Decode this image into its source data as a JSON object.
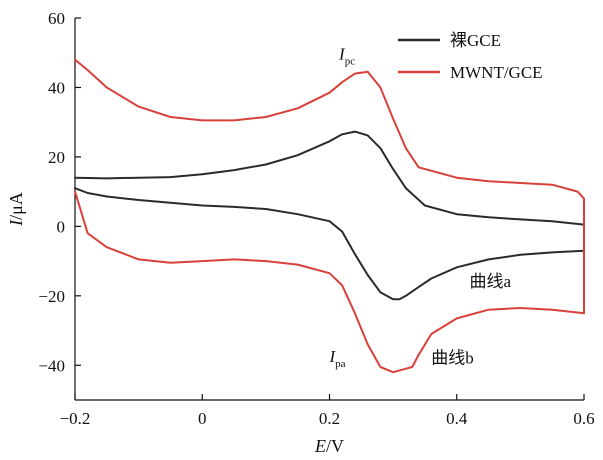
{
  "chart_data": {
    "type": "line",
    "title": "",
    "xlabel": "E/V",
    "ylabel": "I/μA",
    "xlim": [
      -0.2,
      0.6
    ],
    "ylim": [
      -50,
      60
    ],
    "xticks": [
      "−0.2",
      "0",
      "0.2",
      "0.4",
      "0.6"
    ],
    "yticks": [
      "−40",
      "−20",
      "0",
      "20",
      "40",
      "60"
    ],
    "xtick_values": [
      -0.2,
      0,
      0.2,
      0.4,
      0.6
    ],
    "ytick_values": [
      -40,
      -20,
      0,
      20,
      40,
      60
    ],
    "grid": false,
    "legend_position": "top-right",
    "series": [
      {
        "name": "裸GCE",
        "color": "#2b2b2b",
        "x": [
          -0.2,
          -0.15,
          -0.1,
          -0.05,
          0.0,
          0.05,
          0.1,
          0.15,
          0.2,
          0.22,
          0.24,
          0.26,
          0.28,
          0.3,
          0.32,
          0.35,
          0.4,
          0.45,
          0.5,
          0.55,
          0.6,
          0.6,
          0.55,
          0.5,
          0.45,
          0.4,
          0.36,
          0.34,
          0.32,
          0.31,
          0.3,
          0.28,
          0.26,
          0.24,
          0.22,
          0.2,
          0.15,
          0.1,
          0.05,
          0.0,
          -0.05,
          -0.1,
          -0.15,
          -0.18,
          -0.2
        ],
        "y": [
          14,
          13.8,
          14,
          14.2,
          15,
          16.2,
          17.8,
          20.5,
          24.5,
          26.5,
          27.3,
          26.2,
          22.5,
          16.5,
          11,
          6,
          3.5,
          2.6,
          2,
          1.5,
          0.5,
          -7,
          -7.5,
          -8.2,
          -9.5,
          -11.8,
          -15,
          -17.5,
          -20,
          -21,
          -21,
          -19,
          -14,
          -8,
          -1.5,
          1.5,
          3.5,
          5,
          5.6,
          6,
          6.8,
          7.6,
          8.6,
          9.6,
          11
        ]
      },
      {
        "name": "MWNT/GCE",
        "color": "#d9403a",
        "x": [
          -0.2,
          -0.18,
          -0.15,
          -0.1,
          -0.05,
          0.0,
          0.05,
          0.1,
          0.15,
          0.2,
          0.22,
          0.24,
          0.26,
          0.28,
          0.3,
          0.32,
          0.34,
          0.4,
          0.45,
          0.5,
          0.55,
          0.59,
          0.6,
          0.6,
          0.55,
          0.5,
          0.45,
          0.4,
          0.36,
          0.34,
          0.33,
          0.32,
          0.3,
          0.28,
          0.26,
          0.24,
          0.22,
          0.2,
          0.15,
          0.1,
          0.05,
          0.0,
          -0.05,
          -0.1,
          -0.15,
          -0.18,
          -0.2
        ],
        "y": [
          48,
          45,
          40,
          34.5,
          31.5,
          30.5,
          30.5,
          31.5,
          34,
          38.5,
          41.5,
          44,
          44.5,
          40,
          31,
          22.5,
          17,
          14,
          13,
          12.5,
          12,
          10,
          8,
          -25,
          -24,
          -23.5,
          -24,
          -26.5,
          -31,
          -37,
          -40.5,
          -41,
          -42,
          -40.5,
          -34,
          -25,
          -17,
          -13.5,
          -11,
          -10,
          -9.5,
          -10,
          -10.5,
          -9.5,
          -6,
          -2,
          10
        ]
      }
    ],
    "annotations": [
      {
        "text": "I",
        "sub": "pc",
        "x": 0.215,
        "y": 48
      },
      {
        "text": "I",
        "sub": "pa",
        "x": 0.2,
        "y": -39
      },
      {
        "text": "曲线a",
        "x": 0.42,
        "y": -17.5
      },
      {
        "text": "曲线b",
        "x": 0.36,
        "y": -39.5
      }
    ]
  }
}
